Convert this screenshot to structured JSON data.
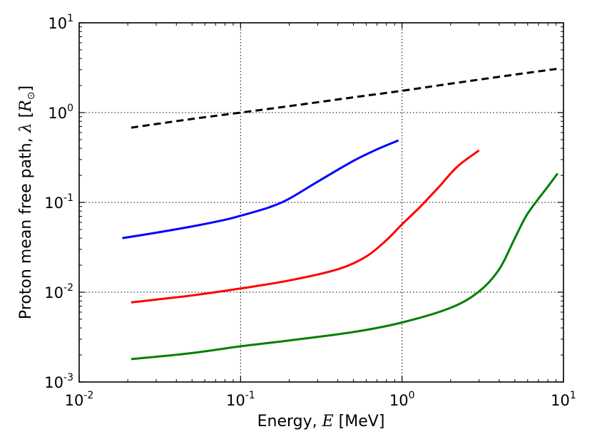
{
  "chart_data": {
    "type": "line",
    "xscale": "log",
    "yscale": "log",
    "xlim": [
      0.01,
      10
    ],
    "ylim": [
      0.001,
      10
    ],
    "xlabel": "Energy, E [MeV]",
    "xlabel_prefix": "Energy, ",
    "xlabel_symbol": "E",
    "xlabel_suffix": " [MeV]",
    "ylabel": "Proton mean free path, λ [R⊙]",
    "ylabel_prefix": "Proton mean free path, ",
    "ylabel_symbol": "λ",
    "ylabel_bracket_open": " [",
    "ylabel_R": "R",
    "ylabel_sun": "⊙",
    "ylabel_bracket_close": "]",
    "grid": true,
    "x_ticks": [
      {
        "value": 0.01,
        "base": "10",
        "exp": "-2"
      },
      {
        "value": 0.1,
        "base": "10",
        "exp": "-1"
      },
      {
        "value": 1,
        "base": "10",
        "exp": "0"
      },
      {
        "value": 10,
        "base": "10",
        "exp": "1"
      }
    ],
    "y_ticks": [
      {
        "value": 0.001,
        "base": "10",
        "exp": "-3"
      },
      {
        "value": 0.01,
        "base": "10",
        "exp": "-2"
      },
      {
        "value": 0.1,
        "base": "10",
        "exp": "-1"
      },
      {
        "value": 1,
        "base": "10",
        "exp": "0"
      },
      {
        "value": 10,
        "base": "10",
        "exp": "1"
      }
    ],
    "series": [
      {
        "name": "dashed-black",
        "color": "#000000",
        "dashed": true,
        "x": [
          0.021,
          0.05,
          0.1,
          0.2,
          0.5,
          1,
          2,
          5,
          9.5
        ],
        "y": [
          0.68,
          0.85,
          1.0,
          1.18,
          1.48,
          1.75,
          2.1,
          2.65,
          3.1
        ]
      },
      {
        "name": "blue",
        "color": "#0000ff",
        "dashed": false,
        "x": [
          0.0185,
          0.03,
          0.05,
          0.08,
          0.1,
          0.15,
          0.2,
          0.3,
          0.5,
          0.7,
          0.95
        ],
        "y": [
          0.04,
          0.046,
          0.054,
          0.064,
          0.071,
          0.088,
          0.11,
          0.17,
          0.29,
          0.39,
          0.49
        ]
      },
      {
        "name": "red",
        "color": "#ff0000",
        "dashed": false,
        "x": [
          0.021,
          0.05,
          0.1,
          0.2,
          0.4,
          0.6,
          0.8,
          1.0,
          1.3,
          1.7,
          2.2,
          3.0
        ],
        "y": [
          0.0077,
          0.0092,
          0.011,
          0.0135,
          0.018,
          0.025,
          0.038,
          0.057,
          0.09,
          0.15,
          0.25,
          0.38
        ]
      },
      {
        "name": "green",
        "color": "#008000",
        "dashed": false,
        "x": [
          0.021,
          0.05,
          0.1,
          0.2,
          0.5,
          1,
          2,
          3,
          4,
          5,
          6,
          8,
          9.2
        ],
        "y": [
          0.0018,
          0.0021,
          0.0025,
          0.0029,
          0.0036,
          0.0046,
          0.0067,
          0.0102,
          0.018,
          0.04,
          0.075,
          0.15,
          0.21
        ]
      }
    ]
  }
}
